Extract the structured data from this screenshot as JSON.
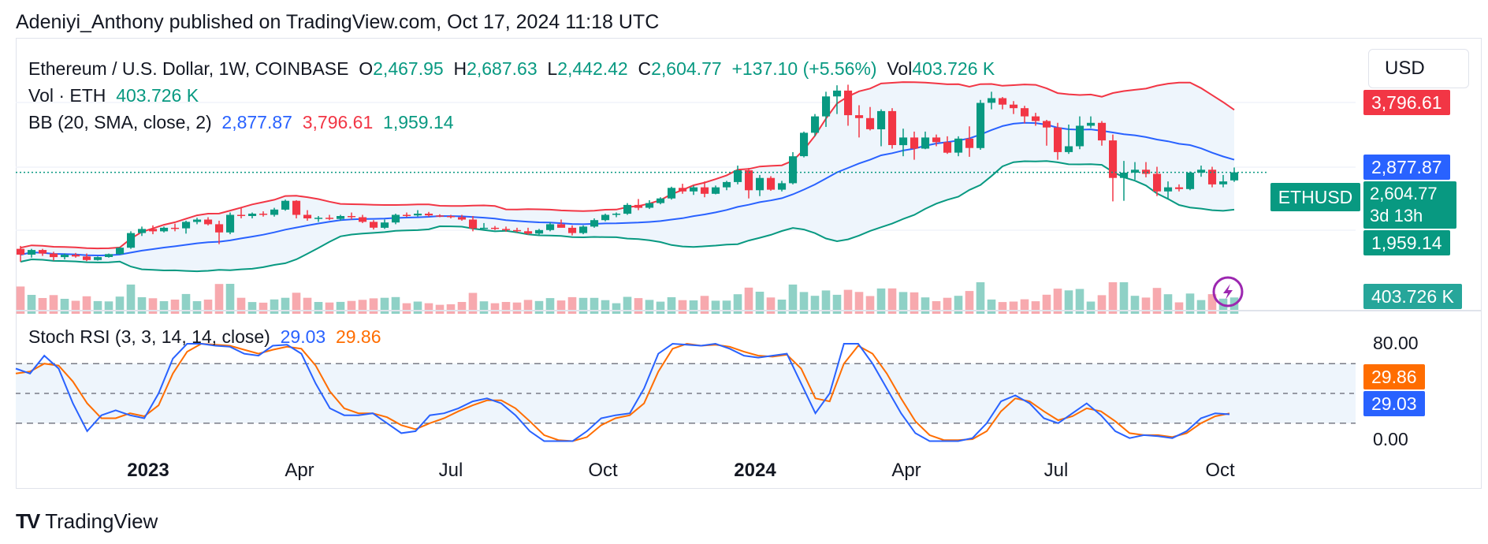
{
  "publisher_line": "Adeniyi_Anthony published on TradingView.com, Oct 17, 2024 11:18 UTC",
  "brand": "TradingView",
  "legend": {
    "symbol": "Ethereum / U.S. Dollar, 1W, COINBASE",
    "o_label": "O",
    "o_value": "2,467.95",
    "h_label": "H",
    "h_value": "2,687.63",
    "l_label": "L",
    "l_value": "2,442.42",
    "c_label": "C",
    "c_value": "2,604.77",
    "change": "+137.10 (+5.56%)",
    "vol_label": "Vol",
    "vol_value": "403.726 K",
    "vol_line_label": "Vol · ETH",
    "vol_line_value": "403.726 K",
    "bb_label": "BB (20, SMA, close, 2)",
    "bb_basis": "2,877.87",
    "bb_upper": "3,796.61",
    "bb_lower": "1,959.14"
  },
  "stoch": {
    "label": "Stoch RSI (3, 3, 14, 14, close)",
    "k_value": "29.03",
    "d_value": "29.86"
  },
  "currency_button": "USD",
  "price_tags": {
    "upper": "3,796.61",
    "basis": "2,877.87",
    "symbol": "ETHUSD",
    "last": "2,604.77",
    "countdown": "3d 13h",
    "lower": "1,959.14",
    "volume": "403.726 K",
    "stoch_d": "29.86",
    "stoch_k": "29.03"
  },
  "stoch_ticks": [
    "80.00",
    "0.00"
  ],
  "colors": {
    "up": "#089981",
    "down": "#f23645",
    "basis": "#2962ff",
    "upper": "#f23645",
    "lower": "#089981",
    "k": "#2962ff",
    "d": "#ff6d00",
    "band_fill": "#eef5fc"
  },
  "chart_data": [
    {
      "type": "candlestick",
      "interval": "1W",
      "x_labels": [
        "2023",
        "Apr",
        "Jul",
        "Oct",
        "2024",
        "Apr",
        "Jul",
        "Oct"
      ],
      "price_range_visible": [
        300,
        4200
      ],
      "last_close": 2604.77,
      "candles_ohlc": [
        [
          1300,
          1350,
          1080,
          1200
        ],
        [
          1200,
          1300,
          1150,
          1280
        ],
        [
          1280,
          1300,
          1180,
          1220
        ],
        [
          1220,
          1250,
          1100,
          1160
        ],
        [
          1160,
          1220,
          1120,
          1200
        ],
        [
          1200,
          1230,
          1150,
          1170
        ],
        [
          1170,
          1220,
          1090,
          1110
        ],
        [
          1110,
          1170,
          1100,
          1160
        ],
        [
          1160,
          1220,
          1150,
          1210
        ],
        [
          1210,
          1330,
          1200,
          1320
        ],
        [
          1320,
          1600,
          1300,
          1570
        ],
        [
          1570,
          1680,
          1520,
          1640
        ],
        [
          1640,
          1700,
          1550,
          1600
        ],
        [
          1600,
          1680,
          1580,
          1660
        ],
        [
          1660,
          1730,
          1600,
          1650
        ],
        [
          1650,
          1780,
          1560,
          1760
        ],
        [
          1760,
          1830,
          1720,
          1800
        ],
        [
          1800,
          1840,
          1700,
          1720
        ],
        [
          1720,
          1780,
          1380,
          1580
        ],
        [
          1580,
          1920,
          1550,
          1880
        ],
        [
          1880,
          2000,
          1820,
          1860
        ],
        [
          1860,
          1920,
          1820,
          1900
        ],
        [
          1900,
          1940,
          1850,
          1880
        ],
        [
          1880,
          2000,
          1850,
          1970
        ],
        [
          1970,
          2140,
          1950,
          2120
        ],
        [
          2120,
          2130,
          1820,
          1880
        ],
        [
          1880,
          1960,
          1780,
          1820
        ],
        [
          1820,
          1860,
          1760,
          1830
        ],
        [
          1830,
          1880,
          1790,
          1810
        ],
        [
          1810,
          1880,
          1780,
          1860
        ],
        [
          1860,
          1920,
          1800,
          1840
        ],
        [
          1840,
          1880,
          1740,
          1760
        ],
        [
          1760,
          1790,
          1630,
          1660
        ],
        [
          1660,
          1800,
          1640,
          1750
        ],
        [
          1750,
          1900,
          1720,
          1880
        ],
        [
          1880,
          1920,
          1840,
          1870
        ],
        [
          1870,
          1960,
          1850,
          1900
        ],
        [
          1900,
          1930,
          1850,
          1870
        ],
        [
          1870,
          1890,
          1840,
          1860
        ],
        [
          1860,
          1880,
          1820,
          1840
        ],
        [
          1840,
          1880,
          1780,
          1800
        ],
        [
          1800,
          1860,
          1600,
          1650
        ],
        [
          1650,
          1740,
          1640,
          1660
        ],
        [
          1660,
          1690,
          1620,
          1640
        ],
        [
          1640,
          1680,
          1590,
          1620
        ],
        [
          1620,
          1660,
          1580,
          1600
        ],
        [
          1600,
          1660,
          1540,
          1560
        ],
        [
          1560,
          1640,
          1540,
          1620
        ],
        [
          1620,
          1750,
          1600,
          1720
        ],
        [
          1720,
          1800,
          1680,
          1660
        ],
        [
          1660,
          1700,
          1530,
          1570
        ],
        [
          1570,
          1700,
          1550,
          1680
        ],
        [
          1680,
          1820,
          1660,
          1790
        ],
        [
          1790,
          1900,
          1770,
          1880
        ],
        [
          1880,
          1920,
          1840,
          1900
        ],
        [
          1900,
          2080,
          1880,
          2050
        ],
        [
          2050,
          2150,
          1960,
          2000
        ],
        [
          2000,
          2130,
          1980,
          2080
        ],
        [
          2080,
          2180,
          2060,
          2160
        ],
        [
          2160,
          2360,
          2140,
          2340
        ],
        [
          2340,
          2410,
          2240,
          2280
        ],
        [
          2280,
          2380,
          2220,
          2350
        ],
        [
          2350,
          2450,
          2180,
          2240
        ],
        [
          2240,
          2380,
          2230,
          2350
        ],
        [
          2350,
          2460,
          2300,
          2440
        ],
        [
          2440,
          2720,
          2400,
          2640
        ],
        [
          2640,
          2680,
          2160,
          2300
        ],
        [
          2300,
          2560,
          2200,
          2510
        ],
        [
          2510,
          2540,
          2290,
          2310
        ],
        [
          2310,
          2460,
          2280,
          2420
        ],
        [
          2420,
          2950,
          2400,
          2880
        ],
        [
          2880,
          3300,
          2860,
          3280
        ],
        [
          3280,
          3600,
          3220,
          3560
        ],
        [
          3560,
          3980,
          3380,
          3900
        ],
        [
          3900,
          4090,
          3600,
          4000
        ],
        [
          4000,
          4100,
          3400,
          3580
        ],
        [
          3580,
          3750,
          3200,
          3530
        ],
        [
          3530,
          3720,
          3320,
          3340
        ],
        [
          3340,
          3680,
          3050,
          3650
        ],
        [
          3650,
          3700,
          3010,
          3070
        ],
        [
          3070,
          3350,
          2880,
          3200
        ],
        [
          3200,
          3300,
          2820,
          3010
        ],
        [
          3010,
          3300,
          3000,
          3200
        ],
        [
          3200,
          3250,
          3050,
          3120
        ],
        [
          3120,
          3220,
          2920,
          2940
        ],
        [
          2940,
          3220,
          2880,
          3180
        ],
        [
          3180,
          3390,
          2870,
          3020
        ],
        [
          3020,
          3840,
          2990,
          3790
        ],
        [
          3790,
          3980,
          3680,
          3870
        ],
        [
          3870,
          3890,
          3680,
          3760
        ],
        [
          3760,
          3820,
          3600,
          3700
        ],
        [
          3700,
          3740,
          3440,
          3560
        ],
        [
          3560,
          3620,
          3400,
          3480
        ],
        [
          3480,
          3500,
          3060,
          3370
        ],
        [
          3370,
          3450,
          2820,
          2950
        ],
        [
          2950,
          3420,
          2920,
          3050
        ],
        [
          3050,
          3560,
          3000,
          3400
        ],
        [
          3400,
          3560,
          3360,
          3450
        ],
        [
          3450,
          3480,
          3060,
          3150
        ],
        [
          3150,
          3250,
          2110,
          2510
        ],
        [
          2510,
          2800,
          2120,
          2600
        ],
        [
          2600,
          2780,
          2480,
          2650
        ],
        [
          2650,
          2780,
          2520,
          2580
        ],
        [
          2580,
          2700,
          2200,
          2280
        ],
        [
          2280,
          2450,
          2150,
          2350
        ],
        [
          2350,
          2400,
          2280,
          2320
        ],
        [
          2320,
          2620,
          2300,
          2600
        ],
        [
          2600,
          2720,
          2530,
          2650
        ],
        [
          2650,
          2700,
          2350,
          2400
        ],
        [
          2400,
          2560,
          2350,
          2450
        ],
        [
          2467.95,
          2687.63,
          2442.42,
          2604.77
        ]
      ],
      "bollinger": {
        "period": 20,
        "basis_last": 2877.87,
        "upper_last": 3796.61,
        "lower_last": 1959.14
      },
      "volume_last": "403.726 K"
    },
    {
      "type": "line",
      "title": "Stoch RSI (3, 3, 14, 14, close)",
      "ylim": [
        0,
        100
      ],
      "reference_lines": [
        80,
        50,
        20
      ],
      "series": [
        {
          "name": "K",
          "values": [
            75,
            70,
            88,
            75,
            40,
            12,
            28,
            33,
            28,
            25,
            50,
            85,
            100,
            100,
            98,
            97,
            90,
            88,
            98,
            99,
            90,
            60,
            35,
            28,
            28,
            30,
            20,
            10,
            12,
            28,
            30,
            35,
            42,
            45,
            40,
            28,
            12,
            2,
            2,
            2,
            12,
            25,
            28,
            30,
            55,
            90,
            100,
            99,
            98,
            100,
            95,
            88,
            86,
            88,
            90,
            60,
            30,
            50,
            100,
            100,
            80,
            55,
            30,
            10,
            2,
            2,
            2,
            5,
            20,
            42,
            48,
            40,
            25,
            20,
            30,
            40,
            28,
            12,
            5,
            8,
            7,
            5,
            12,
            25,
            30,
            29
          ]
        },
        {
          "name": "D",
          "values": [
            70,
            72,
            80,
            78,
            62,
            40,
            25,
            25,
            30,
            27,
            38,
            70,
            92,
            100,
            99,
            98,
            94,
            90,
            94,
            97,
            95,
            78,
            52,
            35,
            30,
            30,
            26,
            18,
            14,
            20,
            25,
            32,
            38,
            43,
            43,
            35,
            22,
            8,
            3,
            2,
            6,
            18,
            25,
            28,
            40,
            72,
            95,
            100,
            98,
            99,
            97,
            92,
            88,
            87,
            89,
            75,
            45,
            42,
            80,
            98,
            90,
            70,
            45,
            22,
            8,
            3,
            3,
            4,
            12,
            32,
            45,
            42,
            32,
            23,
            27,
            35,
            32,
            22,
            10,
            8,
            8,
            6,
            10,
            20,
            27,
            29.86
          ]
        }
      ]
    }
  ]
}
